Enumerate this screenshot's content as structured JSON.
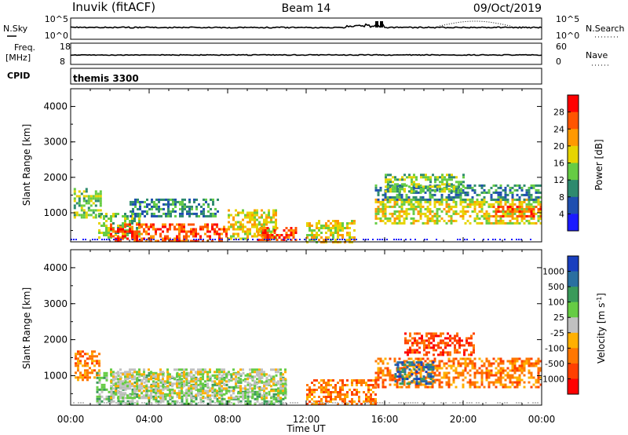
{
  "header": {
    "station": "Inuvik (fitACF)",
    "beam": "Beam 14",
    "date": "09/Oct/2019"
  },
  "strips": {
    "nsky": {
      "label": "N.Sky",
      "ticks": [
        "10^5",
        "10^0"
      ]
    },
    "nsearch": {
      "label": "N.Search",
      "ticks": [
        "10^5",
        "10^0"
      ]
    },
    "freq": {
      "label_line1": "Freq.",
      "label_line2": "[MHz]",
      "ticks": [
        "18",
        "8"
      ]
    },
    "nave": {
      "label": "Nave",
      "ticks": [
        "60",
        "0"
      ]
    },
    "cpid": {
      "label": "CPID",
      "value": "themis 3300"
    }
  },
  "chart_data": [
    {
      "type": "heatmap",
      "variable": "Power",
      "ylabel": "Slant Range [km]",
      "xlabel": "Time UT",
      "xlim": [
        0,
        24
      ],
      "ylim": [
        180,
        4500
      ],
      "x_ticks": [
        "00:00",
        "04:00",
        "08:00",
        "12:00",
        "16:00",
        "20:00",
        "00:00"
      ],
      "y_ticks": [
        "1000",
        "2000",
        "3000",
        "4000"
      ],
      "colorbar": {
        "label": "Power [dB]",
        "ticks": [
          "4",
          "8",
          "12",
          "16",
          "20",
          "24",
          "28"
        ],
        "bins": [
          {
            "range": [
              0,
              4
            ],
            "color": "#1a1aff"
          },
          {
            "range": [
              4,
              8
            ],
            "color": "#1f4fb0"
          },
          {
            "range": [
              8,
              12
            ],
            "color": "#2e8a6e"
          },
          {
            "range": [
              12,
              16
            ],
            "color": "#66cc44"
          },
          {
            "range": [
              16,
              20
            ],
            "color": "#e6d400"
          },
          {
            "range": [
              20,
              24
            ],
            "color": "#ff9900"
          },
          {
            "range": [
              24,
              28
            ],
            "color": "#ff5500"
          },
          {
            "range": [
              28,
              32
            ],
            "color": "#ff0000"
          }
        ]
      },
      "regions": [
        {
          "t": [
            0.15,
            1.5
          ],
          "r": [
            900,
            1700
          ],
          "level": 3
        },
        {
          "t": [
            1.4,
            3.5
          ],
          "r": [
            300,
            1000
          ],
          "level": 3
        },
        {
          "t": [
            2.0,
            8.0
          ],
          "r": [
            200,
            700
          ],
          "level": 6
        },
        {
          "t": [
            3.0,
            7.5
          ],
          "r": [
            900,
            1400
          ],
          "level": 2
        },
        {
          "t": [
            8.0,
            10.5
          ],
          "r": [
            300,
            1100
          ],
          "level": 4
        },
        {
          "t": [
            9.5,
            11.5
          ],
          "r": [
            250,
            600
          ],
          "level": 6
        },
        {
          "t": [
            12.0,
            14.5
          ],
          "r": [
            200,
            800
          ],
          "level": 4
        },
        {
          "t": [
            15.5,
            24.0
          ],
          "r": [
            700,
            1400
          ],
          "level": 4
        },
        {
          "t": [
            15.5,
            24.0
          ],
          "r": [
            1400,
            1800
          ],
          "level": 2
        },
        {
          "t": [
            16.0,
            20.0
          ],
          "r": [
            1600,
            2100
          ],
          "level": 3
        },
        {
          "t": [
            21.5,
            24.0
          ],
          "r": [
            900,
            1200
          ],
          "level": 6
        }
      ]
    },
    {
      "type": "heatmap",
      "variable": "Velocity",
      "ylabel": "Slant Range [km]",
      "xlabel": "Time UT",
      "xlim": [
        0,
        24
      ],
      "ylim": [
        180,
        4500
      ],
      "x_ticks": [
        "00:00",
        "04:00",
        "08:00",
        "12:00",
        "16:00",
        "20:00",
        "00:00"
      ],
      "y_ticks": [
        "1000",
        "2000",
        "3000",
        "4000"
      ],
      "colorbar": {
        "label": "Velocity [m s^-1]",
        "ticks": [
          "1000",
          "500",
          "100",
          "25",
          "-25",
          "-100",
          "-500",
          "-1000"
        ],
        "bins": [
          {
            "range": [
              1000,
              1500
            ],
            "color": "#1a3fbf"
          },
          {
            "range": [
              500,
              1000
            ],
            "color": "#2a6fa0"
          },
          {
            "range": [
              100,
              500
            ],
            "color": "#3a9a5a"
          },
          {
            "range": [
              25,
              100
            ],
            "color": "#66cc44"
          },
          {
            "range": [
              -25,
              25
            ],
            "color": "#c0c0c0"
          },
          {
            "range": [
              -100,
              -25
            ],
            "color": "#ffb000"
          },
          {
            "range": [
              -500,
              -100
            ],
            "color": "#ff7700"
          },
          {
            "range": [
              -1000,
              -500
            ],
            "color": "#ff4000"
          },
          {
            "range": [
              -1500,
              -1000
            ],
            "color": "#ff0000"
          }
        ]
      },
      "regions": [
        {
          "t": [
            0.2,
            1.5
          ],
          "r": [
            900,
            1700
          ],
          "level": 6
        },
        {
          "t": [
            1.3,
            11.0
          ],
          "r": [
            200,
            1100
          ],
          "level": 3
        },
        {
          "t": [
            2.0,
            11.0
          ],
          "r": [
            400,
            1200
          ],
          "level": 4
        },
        {
          "t": [
            12.0,
            15.5
          ],
          "r": [
            200,
            900
          ],
          "level": 6
        },
        {
          "t": [
            15.5,
            24.0
          ],
          "r": [
            700,
            1500
          ],
          "level": 6
        },
        {
          "t": [
            17.0,
            20.5
          ],
          "r": [
            1600,
            2200
          ],
          "level": 7
        },
        {
          "t": [
            16.5,
            18.5
          ],
          "r": [
            800,
            1400
          ],
          "level": 1
        }
      ]
    }
  ]
}
